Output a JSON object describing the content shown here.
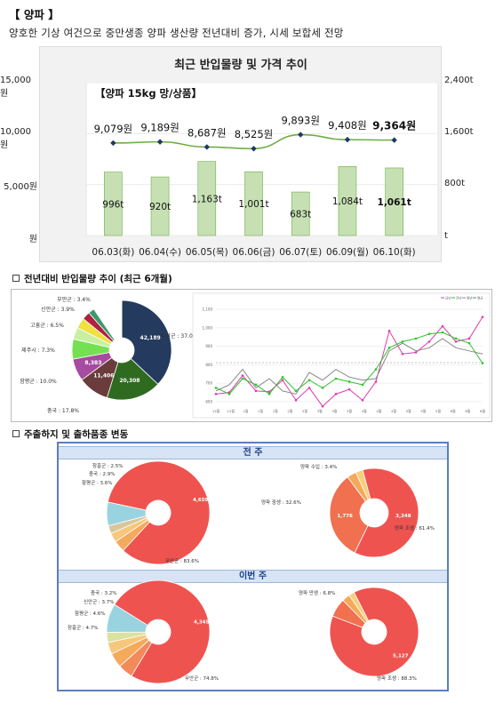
{
  "header": {
    "title": "【 양파 】",
    "subtitle": "양호한 기상 여건으로 중만생종 양파 생산량 전년대비 증가, 시세 보합세 전망"
  },
  "chart_data": [
    {
      "type": "bar",
      "title": "최근 반입물량 및 가격 추이",
      "inner_label": "【양파 15kg 망/상품】",
      "categories": [
        "06.03(화)",
        "06.04(수)",
        "06.05(목)",
        "06.06(금)",
        "06.07(토)",
        "06.09(월)",
        "06.10(화)"
      ],
      "series": [
        {
          "name": "가격",
          "type": "line",
          "axis": "left",
          "values": [
            9079,
            9189,
            8687,
            8525,
            9893,
            9408,
            9364
          ],
          "labels": [
            "9,079원",
            "9,189원",
            "8,687원",
            "8,525원",
            "9,893원",
            "9,408원",
            "9,364원"
          ]
        },
        {
          "name": "반입물량",
          "type": "bar",
          "axis": "right",
          "values": [
            996,
            920,
            1163,
            1001,
            683,
            1084,
            1061
          ],
          "labels": [
            "996t",
            "920t",
            "1,163t",
            "1,001t",
            "683t",
            "1,084t",
            "1,061t"
          ]
        }
      ],
      "left_axis": {
        "ticks": [
          "15,000원",
          "10,000원",
          "5,000원",
          "원"
        ],
        "ylim": [
          0,
          15000
        ]
      },
      "right_axis": {
        "ticks": [
          "2,400t",
          "1,600t",
          "800t",
          "t"
        ],
        "ylim": [
          0,
          2400
        ]
      },
      "colors": {
        "bar": "#c6e0b4",
        "bar_border": "#70ad47",
        "line": "#70ad47",
        "marker": "#1f3864",
        "bg": "#f2f2f2"
      }
    },
    {
      "type": "pie",
      "heading": "전년대비 반입물량 추이 (최근 6개월)",
      "slices": [
        {
          "label": "무안군 : 37.0%",
          "value": 37.0,
          "number": "42,189",
          "color": "#243a5e"
        },
        {
          "label": "충국 : 17.8%",
          "value": 17.8,
          "number": "20,308",
          "color": "#2f6a21"
        },
        {
          "label": "함평군 : 10.0%",
          "value": 10.0,
          "number": "11,406",
          "color": "#6b3c3c"
        },
        {
          "label": "제주시 : 7.3%",
          "value": 7.3,
          "number": "8,383",
          "color": "#a64ba0"
        },
        {
          "label": "고흥군 : 6.5%",
          "value": 6.5,
          "number": "",
          "color": "#76e053"
        },
        {
          "label": "신안군 : 3.9%",
          "value": 3.9,
          "number": "",
          "color": "#c9f0a0"
        },
        {
          "label": "부안군 : 3.4%",
          "value": 3.4,
          "number": "",
          "color": "#f0e040"
        },
        {
          "label": "",
          "value": 2.6,
          "number": "",
          "color": "#b02040"
        },
        {
          "label": "",
          "value": 2.0,
          "number": "",
          "color": "#3a9a6a"
        },
        {
          "label": "",
          "value": 9.5,
          "number": "",
          "color": "#ffffff"
        }
      ]
    },
    {
      "type": "line",
      "heading": "",
      "legend": [
        "금년",
        "전년",
        "평년",
        "평균"
      ],
      "series": [
        {
          "name": "금년",
          "color": "#e03ab0",
          "values": [
            600,
            610,
            720,
            620,
            615,
            690,
            560,
            640,
            520,
            600,
            630,
            560,
            680,
            1010,
            860,
            870,
            940,
            1040,
            940,
            960,
            1100
          ]
        },
        {
          "name": "전년",
          "color": "#2cc42c",
          "values": [
            640,
            600,
            700,
            660,
            600,
            710,
            620,
            690,
            640,
            700,
            680,
            660,
            760,
            900,
            940,
            960,
            990,
            1000,
            960,
            930,
            800
          ]
        },
        {
          "name": "평년",
          "color": "#888888",
          "values": [
            620,
            660,
            760,
            640,
            700,
            620,
            600,
            740,
            690,
            760,
            710,
            690,
            700,
            880,
            930,
            880,
            900,
            960,
            900,
            880,
            860
          ]
        }
      ],
      "yticks": [
        "1,100",
        "1,000",
        "900",
        "800",
        "700",
        "600"
      ],
      "xticks": [
        "12월",
        "12월",
        "1월",
        "1월",
        "1월",
        "2월",
        "2월",
        "3월",
        "3월",
        "3월",
        "4월",
        "4월",
        "4월",
        "5월",
        "5월",
        "5월",
        "6월",
        "6월",
        "6월"
      ]
    },
    {
      "type": "pie",
      "heading": "주출하지 및 출하품종 변동",
      "period": "전 주",
      "slices": [
        {
          "label": "무안군 : 83.6%",
          "value": 83.6,
          "number": "4,659",
          "color": "#ef5350"
        },
        {
          "label": "함평군 : 3.6%",
          "value": 3.6,
          "number": "",
          "color": "#f4a95b"
        },
        {
          "label": "충국 : 2.9%",
          "value": 2.9,
          "number": "",
          "color": "#f7c77b"
        },
        {
          "label": "창흥군 : 2.5%",
          "value": 2.5,
          "number": "",
          "color": "#d8c79a"
        },
        {
          "label": "",
          "value": 7.4,
          "number": "",
          "color": "#9ad3e0"
        }
      ]
    },
    {
      "type": "pie",
      "period": "전 주",
      "slices": [
        {
          "label": "양파 조생 : 61.4%",
          "value": 61.4,
          "number": "3,348",
          "color": "#ef5350"
        },
        {
          "label": "양파 중생 : 32.6%",
          "value": 32.6,
          "number": "1,776",
          "color": "#f07050"
        },
        {
          "label": "양파 수입 : 3.4%",
          "value": 3.4,
          "number": "",
          "color": "#f4a95b"
        },
        {
          "label": "",
          "value": 2.6,
          "number": "",
          "color": "#f7d07b"
        }
      ]
    },
    {
      "type": "pie",
      "period": "이번 주",
      "slices": [
        {
          "label": "무안군 : 74.8%",
          "value": 74.8,
          "number": "4,345",
          "color": "#ef5350"
        },
        {
          "label": "장흥군 : 4.7%",
          "value": 4.7,
          "number": "",
          "color": "#f28a5a"
        },
        {
          "label": "함평군 : 4.6%",
          "value": 4.6,
          "number": "",
          "color": "#f4a95b"
        },
        {
          "label": "신안군 : 3.7%",
          "value": 3.7,
          "number": "",
          "color": "#f7c77b"
        },
        {
          "label": "충국 : 3.2%",
          "value": 3.2,
          "number": "",
          "color": "#d9e2a0"
        },
        {
          "label": "",
          "value": 9.0,
          "number": "",
          "color": "#9ad3e0"
        }
      ]
    },
    {
      "type": "pie",
      "period": "이번 주",
      "slices": [
        {
          "label": "양파 조생 : 88.3%",
          "value": 88.3,
          "number": "5,127",
          "color": "#ef5350"
        },
        {
          "label": "양파 만생 : 6.8%",
          "value": 6.8,
          "number": "",
          "color": "#f07050"
        },
        {
          "label": "",
          "value": 2.9,
          "number": "",
          "color": "#f4a95b"
        },
        {
          "label": "",
          "value": 2.0,
          "number": "",
          "color": "#f7d07b"
        }
      ]
    }
  ],
  "sections": {
    "s2_heading": "전년대비 반입물량 추이 (최근 6개월)",
    "s3_heading": "주출하지 및 출하품종 변동",
    "band_prev": "전 주",
    "band_this": "이번 주"
  }
}
